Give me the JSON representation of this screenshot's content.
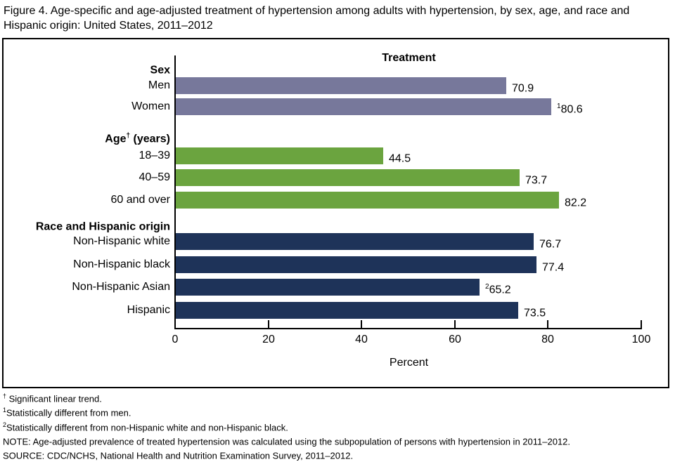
{
  "figure_title": "Figure 4. Age-specific and age-adjusted treatment of hypertension among adults with hypertension, by sex, age, and race and Hispanic origin: United States, 2011–2012",
  "colors": {
    "sex_bar": "#77789B",
    "age_bar": "#6BA43F",
    "race_bar": "#1E3359",
    "axis": "#000000"
  },
  "chart_data": {
    "type": "bar",
    "orientation": "horizontal",
    "panel_title": "Treatment",
    "xlabel": "Percent",
    "xlim": [
      0,
      100
    ],
    "xticks": [
      "0",
      "20",
      "40",
      "60",
      "80",
      "100"
    ],
    "grid": false,
    "legend": "none",
    "groups": [
      {
        "header": "Sex",
        "header_sup": "",
        "header_rest": "",
        "bar_color": "#77789B",
        "bars": [
          {
            "label": "Men",
            "value": 70.9,
            "value_sup": "",
            "value_label": "70.9"
          },
          {
            "label": "Women",
            "value": 80.6,
            "value_sup": "1",
            "value_label": "80.6"
          }
        ]
      },
      {
        "header": "Age",
        "header_sup": "†",
        "header_rest": " (years)",
        "bar_color": "#6BA43F",
        "bars": [
          {
            "label": "18–39",
            "value": 44.5,
            "value_sup": "",
            "value_label": "44.5"
          },
          {
            "label": "40–59",
            "value": 73.7,
            "value_sup": "",
            "value_label": "73.7"
          },
          {
            "label": "60 and over",
            "value": 82.2,
            "value_sup": "",
            "value_label": "82.2"
          }
        ]
      },
      {
        "header": "Race and Hispanic origin",
        "header_sup": "",
        "header_rest": "",
        "bar_color": "#1E3359",
        "bars": [
          {
            "label": "Non-Hispanic white",
            "value": 76.7,
            "value_sup": "",
            "value_label": "76.7"
          },
          {
            "label": "Non-Hispanic black",
            "value": 77.4,
            "value_sup": "",
            "value_label": "77.4"
          },
          {
            "label": "Non-Hispanic Asian",
            "value": 65.2,
            "value_sup": "2",
            "value_label": "65.2"
          },
          {
            "label": "Hispanic",
            "value": 73.5,
            "value_sup": "",
            "value_label": "73.5"
          }
        ]
      }
    ]
  },
  "footnotes": [
    {
      "sup": "†",
      "text": " Significant linear trend."
    },
    {
      "sup": "1",
      "text": "Statistically different from men."
    },
    {
      "sup": "2",
      "text": "Statistically different from non-Hispanic white and non-Hispanic black."
    },
    {
      "sup": "",
      "text": "NOTE: Age-adjusted prevalence of treated hypertension was calculated using the subpopulation of persons with hypertension in 2011–2012."
    },
    {
      "sup": "",
      "text": "SOURCE: CDC/NCHS, National Health and Nutrition Examination Survey, 2011–2012."
    }
  ]
}
